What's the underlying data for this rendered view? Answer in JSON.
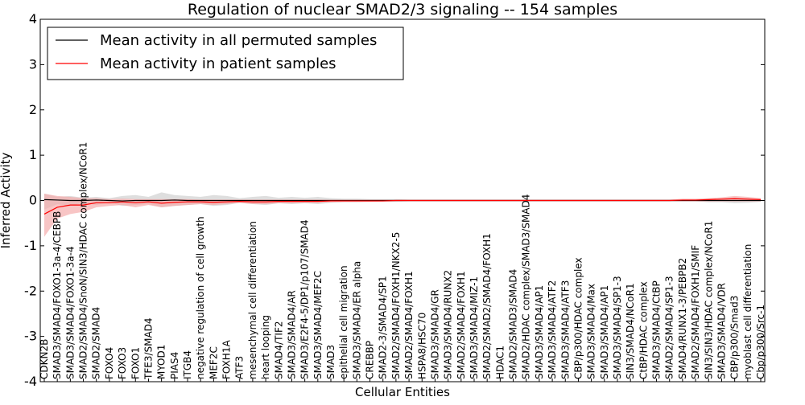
{
  "chart_data": {
    "type": "line",
    "title": "Regulation of nuclear SMAD2/3 signaling -- 154 samples",
    "xlabel": "Cellular Entities",
    "ylabel": "Inferred Activity",
    "ylim": [
      -4,
      4
    ],
    "yticks": [
      -4,
      -3,
      -2,
      -1,
      0,
      1,
      2,
      3,
      4
    ],
    "legend_position": "top-left",
    "grid": false,
    "colors": {
      "permuted": "#000000",
      "patient": "#ff0000",
      "patient_band": "#f4a6a6",
      "permuted_band": "#c8c8c8"
    },
    "categories": [
      "CDKN2B",
      "SMAD3/SMAD4/FOXO1-3a-4/CEBPB",
      "SMAD3/SMAD4/FOXO1-3a-4",
      "SMAD2/SMAD4/SnoN/SIN3/HDAC complex/NCoR1",
      "SMAD2/SMAD4",
      "FOXO4",
      "FOXO3",
      "FOXO1",
      "TFE3/SMAD4",
      "MYOD1",
      "PIAS4",
      "ITGB4",
      "negative regulation of cell growth",
      "MEF2C",
      "FOXH1A",
      "ATF3",
      "mesenchymal cell differentiation",
      "heart looping",
      "SMAD4/TIF2",
      "SMAD3/SMAD4/AR",
      "SMAD3/E2F4-5/DP1/p107/SMAD4",
      "SMAD3/SMAD4/MEF2C",
      "SMAD3",
      "epithelial cell migration",
      "SMAD3/SMAD4/ER alpha",
      "CREBBP",
      "SMAD2-3/SMAD4/SP1",
      "SMAD2/SMAD4/FOXH1/NKX2-5",
      "SMAD2/SMAD4/FOXH1",
      "HSPA8/HSC70",
      "SMAD3/SMAD4/GR",
      "SMAD3/SMAD4/RUNX2",
      "SMAD2/SMAD4/FOXH1",
      "SMAD3/SMAD4/MIZ-1",
      "SMAD2/SMAD2/SMAD4/FOXH1",
      "HDAC1",
      "SMAD2/SMAD3/SMAD4",
      "SMAD2/HDAC complex/SMAD3/SMAD4",
      "SMAD3/SMAD4/AP1",
      "SMAD3/SMAD4/ATF2",
      "SMAD3/SMAD4/ATF3",
      "CBP/p300/HDAC complex",
      "SMAD3/SMAD4/Max",
      "SMAD3/SMAD4/AP1",
      "SMAD3/SMAD4/SP1-3",
      "SIN3/SMAD4/NCoR1",
      "CtBP/HDAC complex",
      "SMAD3/SMAD4/CtBP",
      "SMAD2/SMAD4/SP1-3",
      "SMAD4/RUNX1-3/PEBPB2",
      "SMAD2/SMAD4/FOXH1/SMIF",
      "SIN3/SIN3/HDAC complex/NCoR1",
      "SMAD3/SMAD4/VDR",
      "CBP/p300/Smad3",
      "myoblast cell differentiation",
      "Cbp/p300/Src-1"
    ],
    "x": [
      1,
      2,
      3,
      4,
      5,
      6,
      7,
      8,
      9,
      10,
      11,
      12,
      13,
      14,
      15,
      16,
      17,
      18,
      19,
      20,
      21,
      22,
      23,
      24,
      25,
      26,
      27,
      28,
      29,
      30,
      31,
      32,
      33,
      34,
      35,
      36,
      37,
      38,
      39,
      40,
      41,
      42,
      43,
      44,
      45,
      46,
      47,
      48,
      49,
      50,
      51,
      52,
      53,
      54,
      55,
      56
    ],
    "series": [
      {
        "name": "Mean activity in all permuted samples",
        "values": [
          0.02,
          0.01,
          0.0,
          0.0,
          0.01,
          0.0,
          -0.01,
          0.0,
          0.0,
          0.0,
          0.01,
          0.0,
          0.0,
          0.0,
          0.0,
          0.0,
          0.0,
          0.0,
          0.0,
          0.0,
          0.0,
          0.0,
          0.0,
          0.0,
          0.0,
          0.0,
          0.0,
          0.0,
          0.0,
          0.0,
          0.0,
          0.0,
          0.0,
          0.0,
          0.0,
          0.0,
          0.0,
          0.0,
          0.0,
          0.0,
          0.0,
          0.0,
          0.0,
          0.0,
          0.0,
          0.0,
          0.0,
          0.0,
          0.0,
          0.0,
          0.0,
          0.0,
          0.0,
          0.0,
          0.0,
          0.0
        ],
        "lower": [
          -0.2,
          -0.08,
          -0.12,
          -0.05,
          -0.1,
          -0.04,
          -0.12,
          -0.1,
          -0.08,
          -0.15,
          -0.12,
          -0.1,
          -0.08,
          -0.12,
          -0.1,
          -0.05,
          -0.08,
          -0.1,
          -0.06,
          -0.08,
          -0.06,
          -0.08,
          -0.05,
          -0.04,
          -0.04,
          -0.03,
          -0.03,
          -0.03,
          -0.02,
          -0.02,
          -0.02,
          -0.02,
          -0.02,
          -0.02,
          -0.02,
          -0.02,
          -0.02,
          -0.02,
          -0.02,
          -0.02,
          -0.02,
          -0.02,
          -0.02,
          -0.02,
          -0.02,
          -0.02,
          -0.02,
          -0.02,
          -0.02,
          -0.02,
          -0.02,
          -0.04,
          -0.04,
          -0.06,
          -0.05,
          -0.03
        ],
        "upper": [
          0.15,
          0.08,
          0.1,
          0.06,
          0.08,
          0.05,
          0.1,
          0.12,
          0.08,
          0.18,
          0.12,
          0.1,
          0.08,
          0.12,
          0.1,
          0.05,
          0.08,
          0.1,
          0.06,
          0.08,
          0.06,
          0.08,
          0.05,
          0.04,
          0.04,
          0.03,
          0.03,
          0.03,
          0.02,
          0.02,
          0.02,
          0.02,
          0.02,
          0.02,
          0.02,
          0.02,
          0.02,
          0.02,
          0.02,
          0.02,
          0.02,
          0.02,
          0.02,
          0.02,
          0.02,
          0.02,
          0.02,
          0.02,
          0.02,
          0.02,
          0.02,
          0.04,
          0.04,
          0.06,
          0.05,
          0.03
        ]
      },
      {
        "name": "Mean activity in patient samples",
        "values": [
          -0.3,
          -0.15,
          -0.1,
          -0.1,
          -0.05,
          -0.05,
          -0.03,
          -0.05,
          -0.03,
          -0.06,
          -0.04,
          -0.03,
          -0.03,
          -0.04,
          -0.03,
          -0.02,
          -0.03,
          -0.03,
          -0.02,
          -0.02,
          -0.02,
          -0.02,
          -0.01,
          -0.01,
          -0.01,
          -0.01,
          -0.01,
          0.0,
          0.0,
          0.0,
          0.0,
          0.0,
          0.0,
          0.0,
          0.0,
          0.0,
          0.0,
          0.0,
          0.0,
          0.0,
          0.0,
          0.0,
          0.0,
          0.0,
          0.0,
          0.0,
          0.0,
          0.0,
          0.0,
          0.01,
          0.01,
          0.02,
          0.03,
          0.04,
          0.03,
          0.02
        ],
        "lower": [
          -0.8,
          -0.4,
          -0.3,
          -0.25,
          -0.15,
          -0.12,
          -0.1,
          -0.15,
          -0.1,
          -0.15,
          -0.12,
          -0.1,
          -0.08,
          -0.1,
          -0.08,
          -0.05,
          -0.08,
          -0.08,
          -0.06,
          -0.06,
          -0.05,
          -0.05,
          -0.04,
          -0.03,
          -0.03,
          -0.03,
          -0.02,
          -0.02,
          -0.02,
          -0.02,
          -0.02,
          -0.02,
          -0.02,
          -0.02,
          -0.02,
          -0.02,
          -0.02,
          -0.02,
          -0.02,
          -0.02,
          -0.02,
          -0.02,
          -0.02,
          -0.02,
          -0.02,
          -0.02,
          -0.02,
          -0.02,
          -0.02,
          -0.02,
          -0.02,
          -0.02,
          -0.02,
          -0.02,
          -0.02,
          -0.02
        ],
        "upper": [
          0.15,
          0.1,
          0.08,
          0.05,
          0.05,
          0.03,
          0.04,
          0.03,
          0.03,
          0.03,
          0.03,
          0.03,
          0.02,
          0.02,
          0.02,
          0.02,
          0.02,
          0.02,
          0.02,
          0.02,
          0.02,
          0.02,
          0.02,
          0.02,
          0.02,
          0.02,
          0.02,
          0.02,
          0.02,
          0.02,
          0.02,
          0.02,
          0.02,
          0.02,
          0.02,
          0.02,
          0.02,
          0.02,
          0.02,
          0.02,
          0.02,
          0.02,
          0.02,
          0.02,
          0.02,
          0.02,
          0.02,
          0.02,
          0.02,
          0.04,
          0.04,
          0.05,
          0.07,
          0.1,
          0.08,
          0.05
        ]
      }
    ]
  }
}
